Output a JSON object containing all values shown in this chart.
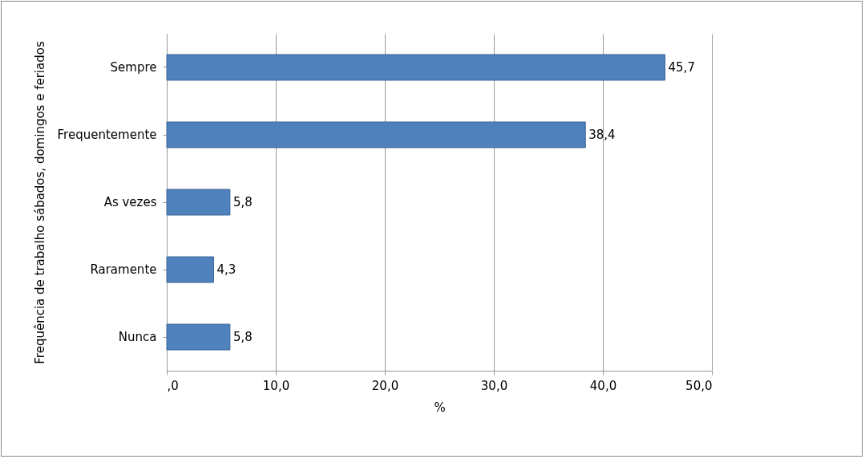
{
  "chart_data": {
    "type": "bar",
    "orientation": "horizontal",
    "categories": [
      "Sempre",
      "Frequentemente",
      "As vezes",
      "Raramente",
      "Nunca"
    ],
    "values": [
      45.7,
      38.4,
      5.8,
      4.3,
      5.8
    ],
    "value_labels": [
      "45,7",
      "38,4",
      "5,8",
      "4,3",
      "5,8"
    ],
    "color": "#4f81bd",
    "xlabel": "%",
    "ylabel": "Frequência de trabalho sábados, domingos e feriados",
    "xlim": [
      0,
      50
    ],
    "xticks": [
      {
        "value": 0,
        "label": ",0"
      },
      {
        "value": 10,
        "label": "10,0"
      },
      {
        "value": 20,
        "label": "20,0"
      },
      {
        "value": 30,
        "label": "30,0"
      },
      {
        "value": 40,
        "label": "40,0"
      },
      {
        "value": 50,
        "label": "50,0"
      }
    ],
    "grid": "x"
  }
}
